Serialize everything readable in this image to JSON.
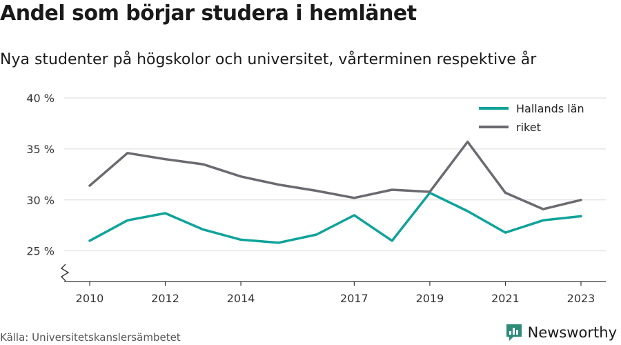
{
  "title": "Andel som börjar studera i hemlänet",
  "subtitle": "Nya studenter på högskolor och universitet, vårterminen respektive år",
  "source": "Källa: Universitetskanslersämbetet",
  "brand": {
    "name": "Newsworthy",
    "icon": "bar-chart-logo-icon",
    "color": "#2e8b78"
  },
  "chart_data": {
    "type": "line",
    "x": [
      2010,
      2011,
      2012,
      2013,
      2014,
      2015,
      2016,
      2017,
      2018,
      2019,
      2020,
      2021,
      2022,
      2023
    ],
    "x_tick_labels": [
      "2010",
      "2012",
      "2014",
      "2017",
      "2019",
      "2021",
      "2023"
    ],
    "y_tick_labels": [
      "25 %",
      "30 %",
      "35 %",
      "40 %"
    ],
    "ylim": [
      22,
      40
    ],
    "y_axis_break": true,
    "grid": true,
    "legend_position": "top-right",
    "series": [
      {
        "name": "Hallands län",
        "color": "#0fa39a",
        "values": [
          26.0,
          28.0,
          28.7,
          27.1,
          26.1,
          25.8,
          26.6,
          28.5,
          26.0,
          30.7,
          28.9,
          26.8,
          28.0,
          28.4
        ]
      },
      {
        "name": "riket",
        "color": "#6a6a70",
        "values": [
          31.4,
          34.6,
          34.0,
          33.5,
          32.3,
          31.5,
          30.9,
          30.2,
          31.0,
          30.8,
          35.7,
          30.7,
          29.1,
          30.0
        ]
      }
    ]
  }
}
